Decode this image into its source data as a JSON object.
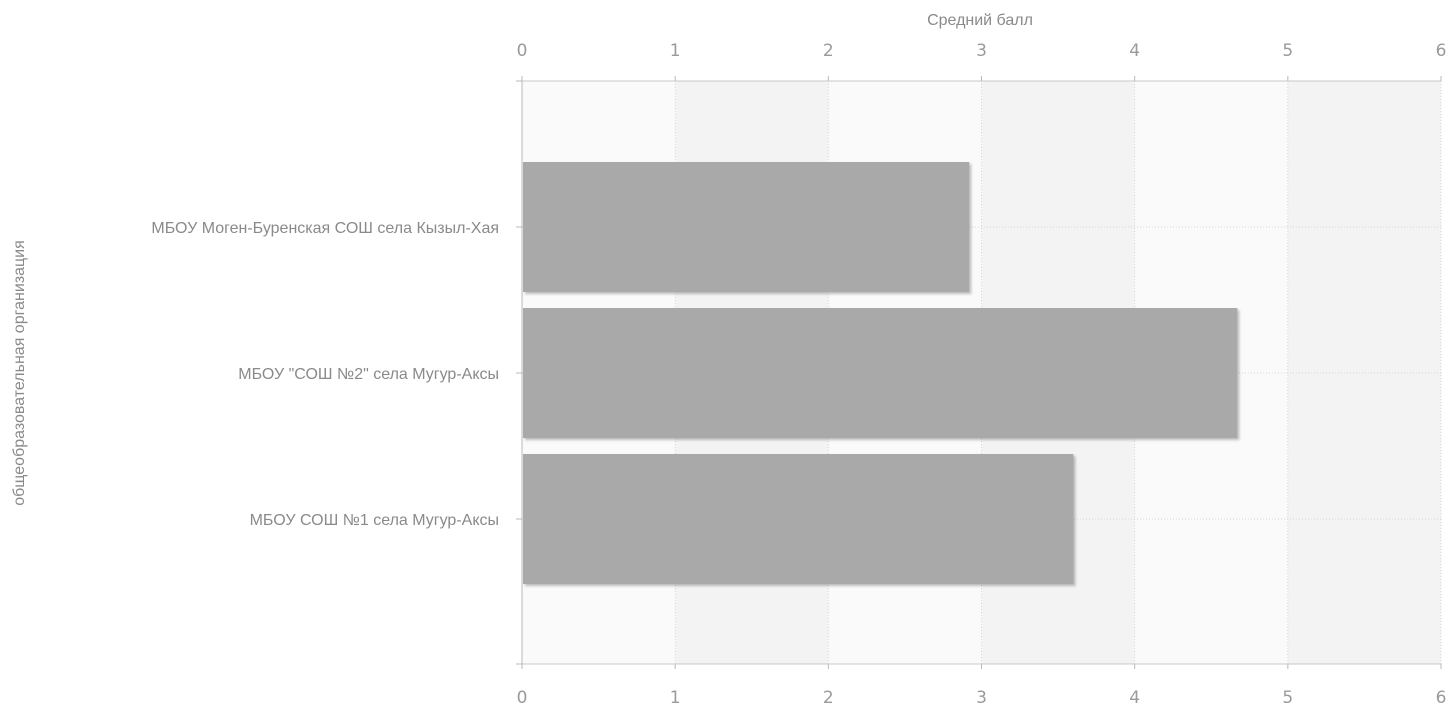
{
  "chart_data": {
    "type": "bar",
    "orientation": "horizontal",
    "xlabel": "Средний балл",
    "ylabel": "общеобразовательная организация",
    "xlim": [
      0,
      6
    ],
    "x_ticks": [
      "0",
      "1",
      "2",
      "3",
      "4",
      "5",
      "6"
    ],
    "categories": [
      "МБОУ Моген-Буренская СОШ села Кызыл-Хая",
      "МБОУ \"СОШ №2\" села Мугур-Аксы",
      "МБОУ СОШ №1 села Мугур-Аксы"
    ],
    "values": [
      2.92,
      4.67,
      3.6
    ],
    "bar_color": "#a9a9a9",
    "grid": true,
    "x_axis_position": "top and bottom"
  }
}
